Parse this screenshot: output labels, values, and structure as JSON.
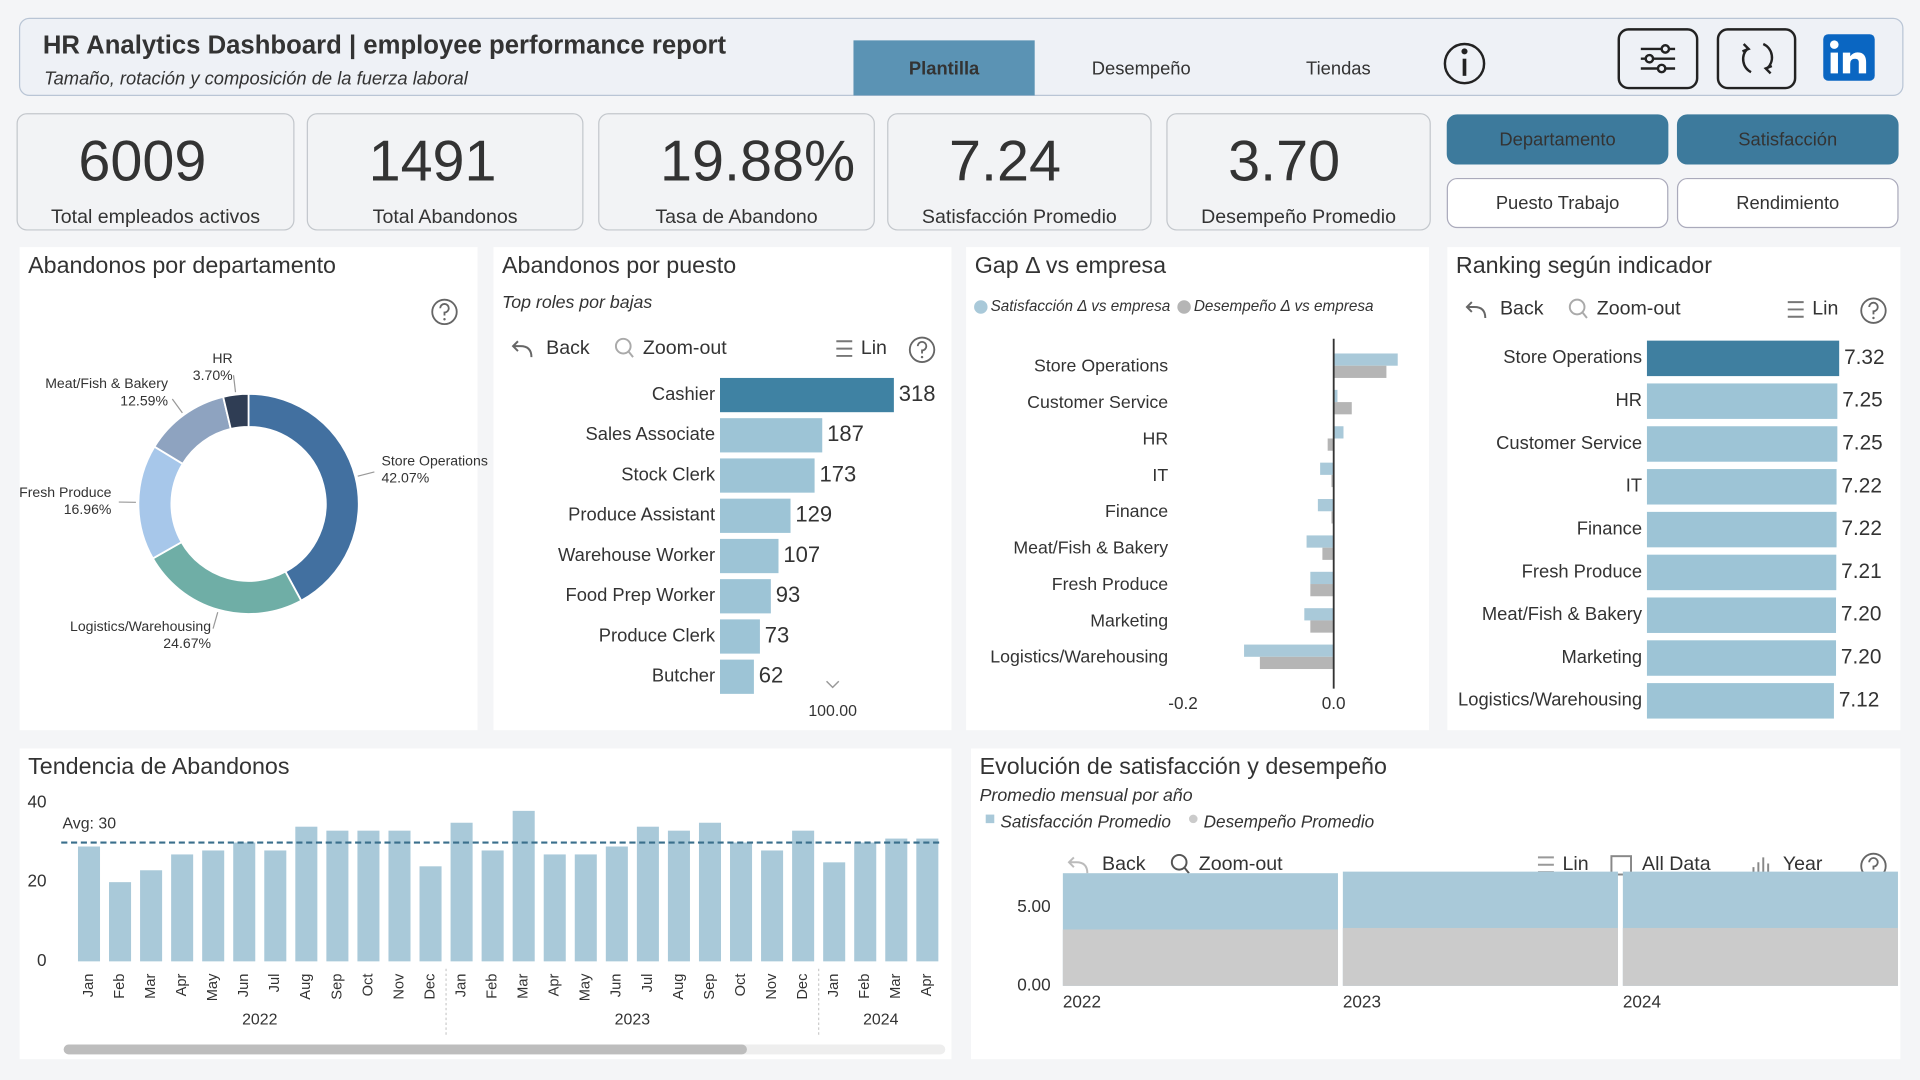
{
  "header": {
    "title": "HR Analytics Dashboard | employee performance report",
    "subtitle": "Tamaño, rotación y composición de la fuerza laboral"
  },
  "tabs": [
    "Plantilla",
    "Desempeño",
    "Tiendas"
  ],
  "kpis": [
    {
      "value": "6009",
      "label": "Total empleados activos"
    },
    {
      "value": "1491",
      "label": "Total Abandonos"
    },
    {
      "value": "19.88%",
      "label": "Tasa de Abandono"
    },
    {
      "value": "7.24",
      "label": "Satisfacción Promedio"
    },
    {
      "value": "3.70",
      "label": "Desempeño Promedio"
    }
  ],
  "filters": [
    "Departamento",
    "Satisfacción",
    "Puesto Trabajo",
    "Rendimiento"
  ],
  "chart_data": [
    {
      "type": "donut",
      "title": "Abandonos por departamento",
      "categories": [
        "Store Operations",
        "Logistics/Warehousing",
        "Fresh Produce",
        "Meat/Fish & Bakery",
        "HR"
      ],
      "values": [
        42.07,
        24.67,
        16.96,
        12.59,
        3.7
      ],
      "value_labels": [
        "42.07%",
        "24.67%",
        "16.96%",
        "12.59%",
        "3.70%"
      ],
      "colors": [
        "#4270a0",
        "#6faea6",
        "#a7c7ea",
        "#8ea3c0",
        "#2f3d54"
      ]
    },
    {
      "type": "hbar",
      "title": "Abandonos por puesto",
      "subtitle": "Top roles por bajas",
      "toolbar": [
        "Back",
        "Zoom-out",
        "Lin"
      ],
      "categories": [
        "Cashier",
        "Sales Associate",
        "Stock Clerk",
        "Produce Assistant",
        "Warehouse Worker",
        "Food Prep Worker",
        "Produce Clerk",
        "Butcher"
      ],
      "values": [
        318,
        187,
        173,
        129,
        107,
        93,
        73,
        62
      ],
      "colors": [
        "#3f82a3",
        "#9dc4d6",
        "#9dc4d6",
        "#9dc4d6",
        "#9dc4d6",
        "#9dc4d6",
        "#9dc4d6",
        "#9dc4d6"
      ],
      "xlim": [
        0,
        318
      ],
      "axis_note": "100.00"
    },
    {
      "type": "grouped_hbar",
      "title": "Gap Δ vs empresa",
      "categories": [
        "Store Operations",
        "Customer Service",
        "HR",
        "IT",
        "Finance",
        "Meat/Fish & Bakery",
        "Fresh Produce",
        "Marketing",
        "Logistics/Warehousing"
      ],
      "series": [
        {
          "name": "Satisfacción Δ vs empresa",
          "color": "#a9c9d9",
          "values": [
            0.085,
            0.005,
            0.013,
            -0.018,
            -0.021,
            -0.036,
            -0.031,
            -0.039,
            -0.119
          ]
        },
        {
          "name": "Desempeño Δ vs empresa",
          "color": "#b5b5b5",
          "values": [
            0.07,
            0.024,
            -0.008,
            -0.003,
            -0.003,
            -0.015,
            -0.031,
            -0.031,
            -0.098
          ]
        }
      ],
      "xlim": [
        -0.21,
        0.12
      ],
      "xticks": [
        -0.2,
        {
          "value": 0,
          "label": "0.0"
        }
      ]
    },
    {
      "type": "hbar",
      "title": "Ranking según indicador",
      "toolbar": [
        "Back",
        "Zoom-out",
        "Lin"
      ],
      "categories": [
        "Store Operations",
        "HR",
        "Customer Service",
        "IT",
        "Finance",
        "Fresh Produce",
        "Meat/Fish & Bakery",
        "Marketing",
        "Logistics/Warehousing"
      ],
      "values": [
        7.32,
        7.25,
        7.25,
        7.22,
        7.22,
        7.21,
        7.2,
        7.2,
        7.12
      ],
      "value_labels": [
        "7.32",
        "7.25",
        "7.25",
        "7.22",
        "7.22",
        "7.21",
        "7.20",
        "7.20",
        "7.12"
      ],
      "colors": [
        "#3f7fa0",
        "#9dc4d6",
        "#9dc4d6",
        "#9dc4d6",
        "#9dc4d6",
        "#9dc4d6",
        "#9dc4d6",
        "#9dc4d6",
        "#9dc4d6"
      ],
      "xlim": [
        0,
        7.32
      ]
    },
    {
      "type": "bar",
      "title": "Tendencia de Abandonos",
      "categories": [
        "Jan",
        "Feb",
        "Mar",
        "Apr",
        "May",
        "Jun",
        "Jul",
        "Aug",
        "Sep",
        "Oct",
        "Nov",
        "Dec",
        "Jan",
        "Feb",
        "Mar",
        "Apr",
        "May",
        "Jun",
        "Jul",
        "Aug",
        "Sep",
        "Oct",
        "Nov",
        "Dec",
        "Jan",
        "Feb",
        "Mar",
        "Apr"
      ],
      "categories_year": [
        "2022",
        null,
        null,
        null,
        null,
        null,
        null,
        null,
        null,
        null,
        null,
        null,
        "2023",
        null,
        null,
        null,
        null,
        null,
        null,
        null,
        null,
        null,
        null,
        null,
        "2024",
        null,
        null,
        null
      ],
      "values": [
        29,
        20,
        23,
        27,
        28,
        30,
        28,
        34,
        33,
        33,
        33,
        24,
        35,
        28,
        38,
        27,
        27,
        29,
        34,
        33,
        35,
        30,
        28,
        33,
        25,
        30,
        31,
        31
      ],
      "color": "#a9c9d9",
      "ylim": [
        0,
        42
      ],
      "yticks": [
        0,
        20,
        40
      ],
      "avg_line": {
        "value": 30,
        "label": "Avg: 30",
        "color": "#3a6f8c"
      }
    },
    {
      "type": "area_year",
      "title": "Evolución de satisfacción y desempeño",
      "subtitle": "Promedio mensual por año",
      "toolbar": [
        "Back",
        "Zoom-out",
        "Lin",
        "All Data",
        "Year"
      ],
      "categories": [
        "2022",
        "2023",
        "2024"
      ],
      "series": [
        {
          "name": "Satisfacción Promedio",
          "color": "#a9c9d9",
          "values": [
            7.2,
            7.3,
            7.3
          ]
        },
        {
          "name": "Desempeño Promedio",
          "color": "#cbcbcb",
          "values": [
            3.6,
            3.7,
            3.7
          ]
        }
      ],
      "ylim": [
        0,
        7.35
      ],
      "yticks": [
        {
          "value": 0,
          "label": "0.00"
        },
        {
          "value": 5,
          "label": "5.00"
        }
      ]
    }
  ]
}
